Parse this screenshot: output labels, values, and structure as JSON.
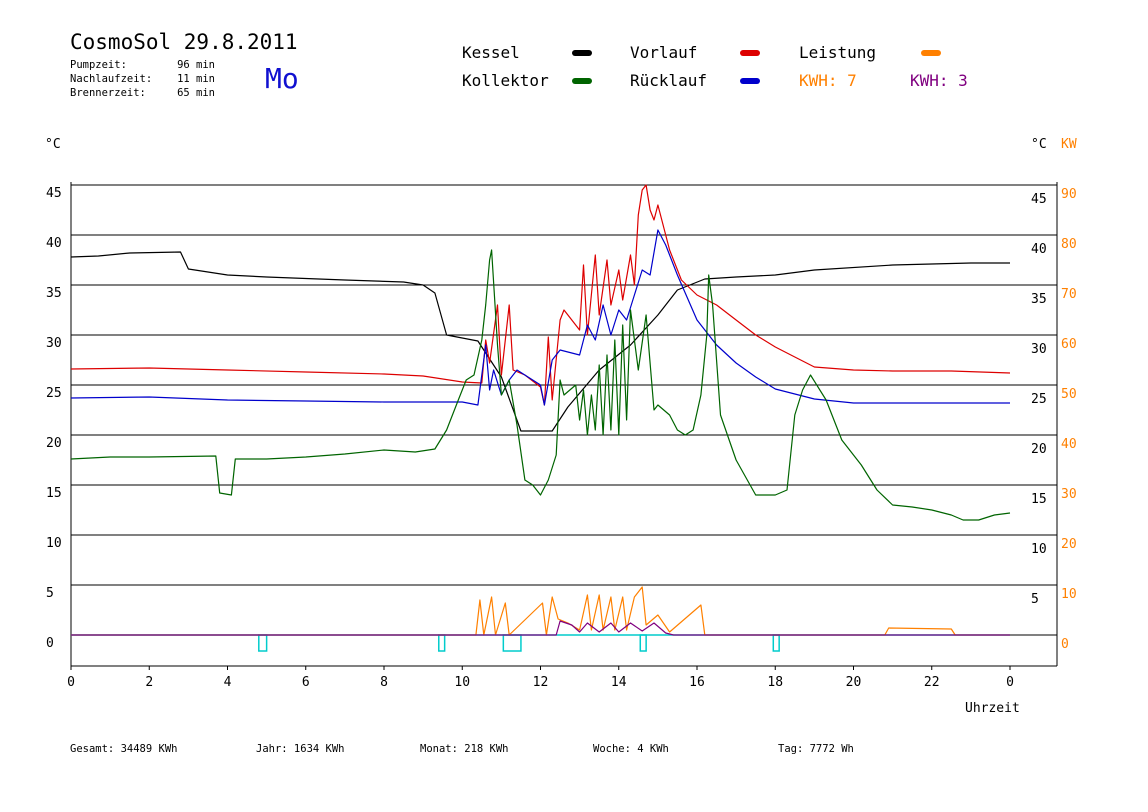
{
  "header": {
    "title": "CosmoSol 29.8.2011",
    "day": "Mo",
    "stats": [
      {
        "label": "Pumpzeit:",
        "value": "96 min"
      },
      {
        "label": "Nachlaufzeit:",
        "value": "11 min"
      },
      {
        "label": "Brennerzeit:",
        "value": "65 min"
      }
    ]
  },
  "legend": {
    "kessel": "Kessel",
    "kollektor": "Kollektor",
    "vorlauf": "Vorlauf",
    "ruecklauf": "Rücklauf",
    "leistung": "Leistung",
    "kwh_orange": "KWH: 7",
    "kwh_purple": "KWH: 3"
  },
  "colors": {
    "kessel": "#000000",
    "kollektor": "#006400",
    "vorlauf": "#dd0000",
    "ruecklauf": "#0000cc",
    "leistung": "#ff8000",
    "kwh_purple": "#800080",
    "pump": "#00cccc",
    "right_axis": "#ff8000"
  },
  "axes": {
    "left_unit": "°C",
    "right_unit_c": "°C",
    "right_unit_kw": "KW",
    "xlabel": "Uhrzeit"
  },
  "footer": {
    "gesamt": "Gesamt:  34489 KWh",
    "jahr": "Jahr:   1634 KWh",
    "monat": "Monat:    218 KWh",
    "woche": "Woche:      4 KWh",
    "tag": "Tag:   7772 Wh"
  },
  "chart_data": {
    "type": "line",
    "xlabel": "Uhrzeit",
    "x_ticks": [
      "0",
      "2",
      "4",
      "6",
      "8",
      "10",
      "12",
      "14",
      "16",
      "18",
      "20",
      "22",
      "0"
    ],
    "xlim": [
      0,
      24
    ],
    "left_ticks": [
      "45",
      "40",
      "35",
      "30",
      "25",
      "20",
      "15",
      "10",
      "5",
      "0"
    ],
    "right_ticks_c": [
      "45",
      "40",
      "35",
      "30",
      "25",
      "20",
      "15",
      "10",
      "5"
    ],
    "right_ticks_kw": [
      "90",
      "80",
      "70",
      "60",
      "50",
      "40",
      "30",
      "20",
      "10",
      "0"
    ],
    "ylim": [
      -3,
      45
    ],
    "grid": "horizontal",
    "series": [
      {
        "name": "Kessel",
        "color": "#000000",
        "points": [
          [
            0,
            37.8
          ],
          [
            0.7,
            37.9
          ],
          [
            1.5,
            38.2
          ],
          [
            2.8,
            38.3
          ],
          [
            3.0,
            36.6
          ],
          [
            4.0,
            36.0
          ],
          [
            5.0,
            35.8
          ],
          [
            7.0,
            35.5
          ],
          [
            8.5,
            35.3
          ],
          [
            9.0,
            35.0
          ],
          [
            9.3,
            34.2
          ],
          [
            9.6,
            30.0
          ],
          [
            10.4,
            29.4
          ],
          [
            11.0,
            25.8
          ],
          [
            11.5,
            20.4
          ],
          [
            12.3,
            20.4
          ],
          [
            12.7,
            22.8
          ],
          [
            13.5,
            26.5
          ],
          [
            14.3,
            29.0
          ],
          [
            15.0,
            32.0
          ],
          [
            15.5,
            34.5
          ],
          [
            16.2,
            35.6
          ],
          [
            17.0,
            35.8
          ],
          [
            18.0,
            36.0
          ],
          [
            19.0,
            36.5
          ],
          [
            21.0,
            37.0
          ],
          [
            23.0,
            37.2
          ],
          [
            24.0,
            37.2
          ]
        ]
      },
      {
        "name": "Vorlauf",
        "color": "#dd0000",
        "points": [
          [
            0,
            26.6
          ],
          [
            2.0,
            26.7
          ],
          [
            4.0,
            26.5
          ],
          [
            6.0,
            26.3
          ],
          [
            8.0,
            26.1
          ],
          [
            9.0,
            25.9
          ],
          [
            10.0,
            25.3
          ],
          [
            10.5,
            25.2
          ],
          [
            10.6,
            29.5
          ],
          [
            10.7,
            27.2
          ],
          [
            10.9,
            33.0
          ],
          [
            11.0,
            26.0
          ],
          [
            11.2,
            33.0
          ],
          [
            11.3,
            26.5
          ],
          [
            11.6,
            26.0
          ],
          [
            12.0,
            24.8
          ],
          [
            12.1,
            23.0
          ],
          [
            12.2,
            29.8
          ],
          [
            12.3,
            23.5
          ],
          [
            12.5,
            31.5
          ],
          [
            12.6,
            32.5
          ],
          [
            13.0,
            30.5
          ],
          [
            13.1,
            37.0
          ],
          [
            13.2,
            30.0
          ],
          [
            13.4,
            38.0
          ],
          [
            13.5,
            32.0
          ],
          [
            13.7,
            37.5
          ],
          [
            13.8,
            33.0
          ],
          [
            14.0,
            36.5
          ],
          [
            14.1,
            33.5
          ],
          [
            14.3,
            38.0
          ],
          [
            14.4,
            35.0
          ],
          [
            14.5,
            42.0
          ],
          [
            14.6,
            44.5
          ],
          [
            14.7,
            45.0
          ],
          [
            14.8,
            42.5
          ],
          [
            14.9,
            41.5
          ],
          [
            15.0,
            43.0
          ],
          [
            15.3,
            38.5
          ],
          [
            15.6,
            35.5
          ],
          [
            16.0,
            34.0
          ],
          [
            16.5,
            33.0
          ],
          [
            17.0,
            31.5
          ],
          [
            17.5,
            30.0
          ],
          [
            18.0,
            28.8
          ],
          [
            18.5,
            27.8
          ],
          [
            19.0,
            26.8
          ],
          [
            20.0,
            26.5
          ],
          [
            21.0,
            26.4
          ],
          [
            22.5,
            26.4
          ],
          [
            24.0,
            26.2
          ]
        ]
      },
      {
        "name": "Rücklauf",
        "color": "#0000cc",
        "points": [
          [
            0,
            23.7
          ],
          [
            2.0,
            23.8
          ],
          [
            4.0,
            23.5
          ],
          [
            6.0,
            23.4
          ],
          [
            8.0,
            23.3
          ],
          [
            9.0,
            23.3
          ],
          [
            10.0,
            23.3
          ],
          [
            10.4,
            23.0
          ],
          [
            10.6,
            29.0
          ],
          [
            10.7,
            24.5
          ],
          [
            10.8,
            26.5
          ],
          [
            11.0,
            24.0
          ],
          [
            11.2,
            25.5
          ],
          [
            11.4,
            26.5
          ],
          [
            11.8,
            25.5
          ],
          [
            12.0,
            25.0
          ],
          [
            12.1,
            23.0
          ],
          [
            12.3,
            27.5
          ],
          [
            12.5,
            28.5
          ],
          [
            13.0,
            28.0
          ],
          [
            13.2,
            31.0
          ],
          [
            13.4,
            29.5
          ],
          [
            13.6,
            33.0
          ],
          [
            13.8,
            30.0
          ],
          [
            14.0,
            32.5
          ],
          [
            14.2,
            31.5
          ],
          [
            14.4,
            34.0
          ],
          [
            14.6,
            36.5
          ],
          [
            14.8,
            36.0
          ],
          [
            15.0,
            40.5
          ],
          [
            15.2,
            39.0
          ],
          [
            15.5,
            36.0
          ],
          [
            16.0,
            31.5
          ],
          [
            16.5,
            29.0
          ],
          [
            17.0,
            27.2
          ],
          [
            17.5,
            25.8
          ],
          [
            18.0,
            24.6
          ],
          [
            19.0,
            23.6
          ],
          [
            20.0,
            23.2
          ],
          [
            21.0,
            23.2
          ],
          [
            22.5,
            23.2
          ],
          [
            24.0,
            23.2
          ]
        ]
      },
      {
        "name": "Kollektor",
        "color": "#006400",
        "points": [
          [
            0,
            17.6
          ],
          [
            1.0,
            17.8
          ],
          [
            2.0,
            17.8
          ],
          [
            3.7,
            17.9
          ],
          [
            3.8,
            14.2
          ],
          [
            4.1,
            14.0
          ],
          [
            4.2,
            17.6
          ],
          [
            5.0,
            17.6
          ],
          [
            6.0,
            17.8
          ],
          [
            7.0,
            18.1
          ],
          [
            8.0,
            18.5
          ],
          [
            8.8,
            18.3
          ],
          [
            9.3,
            18.6
          ],
          [
            9.6,
            20.5
          ],
          [
            9.9,
            23.5
          ],
          [
            10.1,
            25.5
          ],
          [
            10.3,
            26.0
          ],
          [
            10.5,
            29.5
          ],
          [
            10.6,
            33.0
          ],
          [
            10.7,
            37.5
          ],
          [
            10.75,
            38.5
          ],
          [
            10.9,
            29.0
          ],
          [
            11.0,
            24.0
          ],
          [
            11.2,
            25.5
          ],
          [
            11.4,
            21.0
          ],
          [
            11.6,
            15.5
          ],
          [
            11.8,
            15.0
          ],
          [
            12.0,
            14.0
          ],
          [
            12.2,
            15.5
          ],
          [
            12.4,
            18.0
          ],
          [
            12.5,
            25.5
          ],
          [
            12.6,
            24.0
          ],
          [
            12.9,
            25.0
          ],
          [
            13.0,
            21.5
          ],
          [
            13.1,
            24.5
          ],
          [
            13.2,
            20.0
          ],
          [
            13.3,
            24.0
          ],
          [
            13.4,
            20.5
          ],
          [
            13.5,
            27.0
          ],
          [
            13.6,
            20.0
          ],
          [
            13.7,
            28.0
          ],
          [
            13.8,
            20.5
          ],
          [
            13.9,
            29.5
          ],
          [
            14.0,
            20.0
          ],
          [
            14.1,
            31.0
          ],
          [
            14.2,
            21.5
          ],
          [
            14.3,
            32.5
          ],
          [
            14.5,
            26.5
          ],
          [
            14.7,
            32.0
          ],
          [
            14.9,
            22.5
          ],
          [
            15.0,
            23.0
          ],
          [
            15.3,
            22.0
          ],
          [
            15.5,
            20.5
          ],
          [
            15.7,
            20.0
          ],
          [
            15.9,
            20.5
          ],
          [
            16.1,
            24.0
          ],
          [
            16.25,
            30.0
          ],
          [
            16.3,
            36.0
          ],
          [
            16.4,
            33.0
          ],
          [
            16.6,
            22.0
          ],
          [
            17.0,
            17.5
          ],
          [
            17.5,
            14.0
          ],
          [
            18.0,
            14.0
          ],
          [
            18.3,
            14.5
          ],
          [
            18.5,
            22.0
          ],
          [
            18.7,
            24.5
          ],
          [
            18.9,
            26.0
          ],
          [
            19.3,
            23.5
          ],
          [
            19.7,
            19.5
          ],
          [
            20.2,
            17.0
          ],
          [
            20.6,
            14.5
          ],
          [
            21.0,
            13.0
          ],
          [
            21.5,
            12.8
          ],
          [
            22.0,
            12.5
          ],
          [
            22.5,
            12.0
          ],
          [
            22.8,
            11.5
          ],
          [
            23.2,
            11.5
          ],
          [
            23.6,
            12.0
          ],
          [
            24.0,
            12.2
          ]
        ]
      },
      {
        "name": "Leistung",
        "color": "#ff8000",
        "points": [
          [
            0,
            0
          ],
          [
            10.35,
            0
          ],
          [
            10.45,
            3.5
          ],
          [
            10.55,
            0
          ],
          [
            10.75,
            3.8
          ],
          [
            10.85,
            0
          ],
          [
            11.1,
            3.2
          ],
          [
            11.2,
            0
          ],
          [
            12.05,
            3.2
          ],
          [
            12.15,
            0
          ],
          [
            12.3,
            3.8
          ],
          [
            12.45,
            1.6
          ],
          [
            12.7,
            1.2
          ],
          [
            13.0,
            0.5
          ],
          [
            13.2,
            4.0
          ],
          [
            13.3,
            0.5
          ],
          [
            13.5,
            4.0
          ],
          [
            13.6,
            0.5
          ],
          [
            13.8,
            3.8
          ],
          [
            13.9,
            0.5
          ],
          [
            14.1,
            3.8
          ],
          [
            14.2,
            0.5
          ],
          [
            14.4,
            3.8
          ],
          [
            14.6,
            4.8
          ],
          [
            14.7,
            1.0
          ],
          [
            15.0,
            2.0
          ],
          [
            15.3,
            0.3
          ],
          [
            16.1,
            3.0
          ],
          [
            16.2,
            0
          ],
          [
            20.8,
            0
          ],
          [
            20.9,
            0.7
          ],
          [
            22.5,
            0.6
          ],
          [
            22.6,
            0
          ],
          [
            24.0,
            0
          ]
        ]
      },
      {
        "name": "KWH",
        "color": "#800080",
        "points": [
          [
            0,
            0
          ],
          [
            12.4,
            0
          ],
          [
            12.5,
            1.4
          ],
          [
            12.8,
            1.0
          ],
          [
            13.0,
            0.3
          ],
          [
            13.2,
            1.2
          ],
          [
            13.5,
            0.3
          ],
          [
            13.8,
            1.2
          ],
          [
            14.0,
            0.3
          ],
          [
            14.3,
            1.2
          ],
          [
            14.6,
            0.4
          ],
          [
            14.9,
            1.2
          ],
          [
            15.2,
            0.2
          ],
          [
            15.4,
            0
          ],
          [
            24.0,
            0
          ]
        ]
      }
    ],
    "pump_blocks": [
      [
        4.8,
        5.0
      ],
      [
        9.4,
        9.55
      ],
      [
        11.05,
        11.5
      ],
      [
        14.55,
        14.7
      ],
      [
        17.95,
        18.1
      ]
    ]
  }
}
